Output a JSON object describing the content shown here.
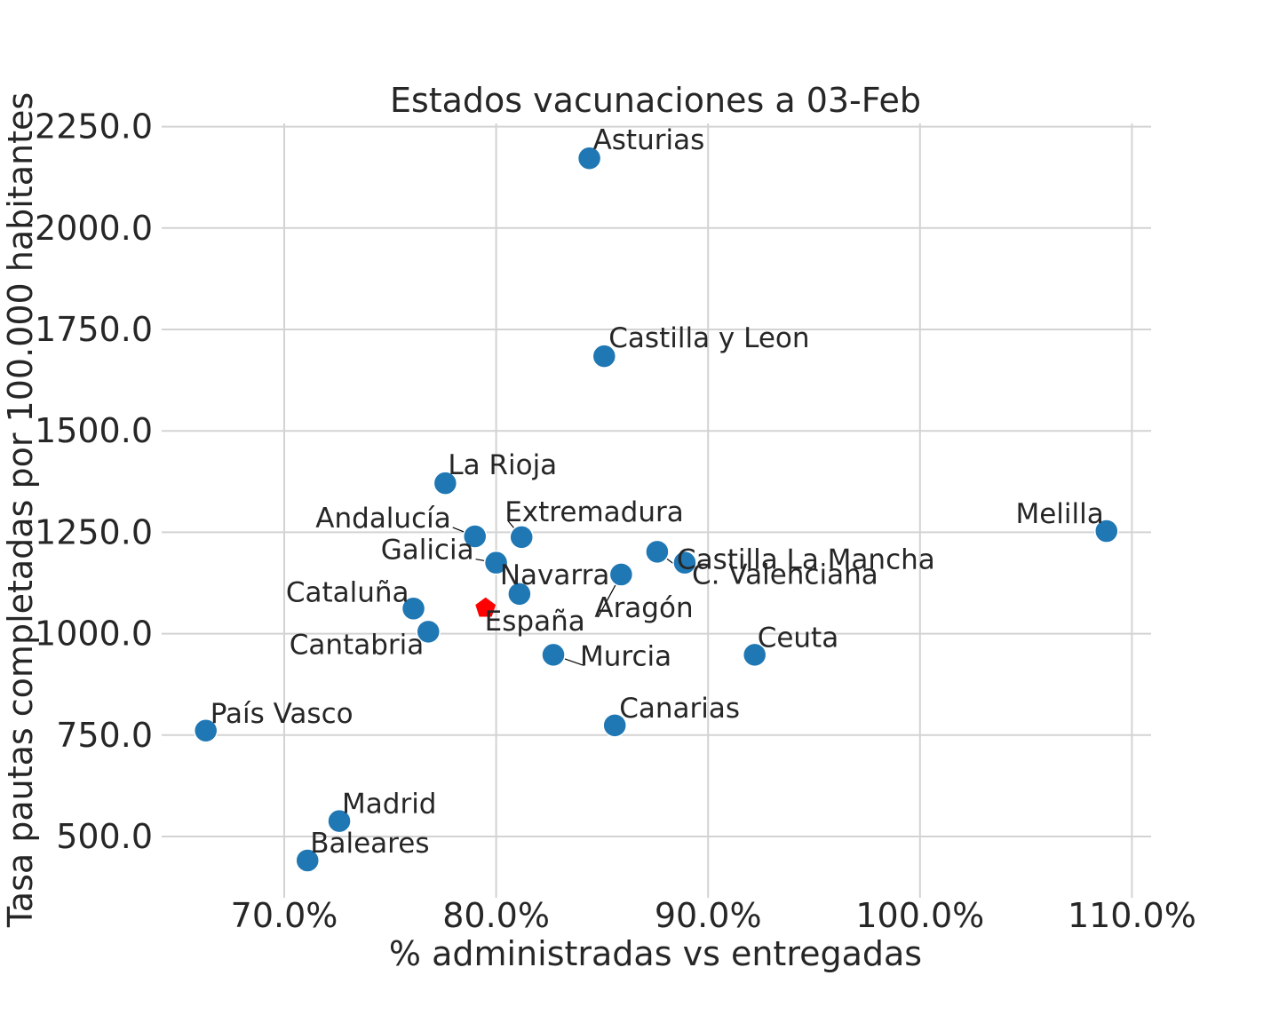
{
  "chart_data": {
    "type": "scatter",
    "title": "Estados vacunaciones a 03-Feb",
    "xlabel": "% administradas vs entregadas",
    "ylabel": "Tasa pautas completadas por 100.000 habitantes",
    "xlim": [
      0.643,
      1.109
    ],
    "ylim": [
      380,
      2260
    ],
    "x_ticks": [
      0.7,
      0.8,
      0.9,
      1.0,
      1.1
    ],
    "x_tick_labels": [
      "70.0%",
      "80.0%",
      "90.0%",
      "100.0%",
      "110.0%"
    ],
    "y_ticks": [
      500,
      750,
      1000,
      1250,
      1500,
      1750,
      2000,
      2250
    ],
    "y_tick_labels": [
      "500.0",
      "750.0",
      "1000.0",
      "1250.0",
      "1500.0",
      "1750.0",
      "2000.0",
      "2250.0"
    ],
    "grid": true,
    "point_color": "#1f77b4",
    "highlight_color": "#ff0000",
    "points": [
      {
        "name": "Asturias",
        "x": 0.844,
        "y": 2172
      },
      {
        "name": "Castilla y Leon",
        "x": 0.851,
        "y": 1684
      },
      {
        "name": "La Rioja",
        "x": 0.776,
        "y": 1371
      },
      {
        "name": "Andalucía",
        "x": 0.79,
        "y": 1240
      },
      {
        "name": "Extremadura",
        "x": 0.812,
        "y": 1238
      },
      {
        "name": "Galicia",
        "x": 0.8,
        "y": 1175
      },
      {
        "name": "Navarra",
        "x": 0.811,
        "y": 1098
      },
      {
        "name": "Aragón",
        "x": 0.859,
        "y": 1146
      },
      {
        "name": "Castilla La Mancha",
        "x": 0.876,
        "y": 1202
      },
      {
        "name": "C. Valenciana",
        "x": 0.889,
        "y": 1175
      },
      {
        "name": "Melilla",
        "x": 1.088,
        "y": 1253
      },
      {
        "name": "Cataluña",
        "x": 0.761,
        "y": 1062
      },
      {
        "name": "Cantabria",
        "x": 0.768,
        "y": 1005
      },
      {
        "name": "Murcia",
        "x": 0.827,
        "y": 948
      },
      {
        "name": "Ceuta",
        "x": 0.922,
        "y": 948
      },
      {
        "name": "Canarias",
        "x": 0.856,
        "y": 774
      },
      {
        "name": "País Vasco",
        "x": 0.663,
        "y": 761
      },
      {
        "name": "Madrid",
        "x": 0.726,
        "y": 538
      },
      {
        "name": "Baleares",
        "x": 0.711,
        "y": 441
      }
    ],
    "highlight": {
      "name": "España",
      "x": 0.795,
      "y": 1063,
      "marker": "pentagon"
    }
  }
}
